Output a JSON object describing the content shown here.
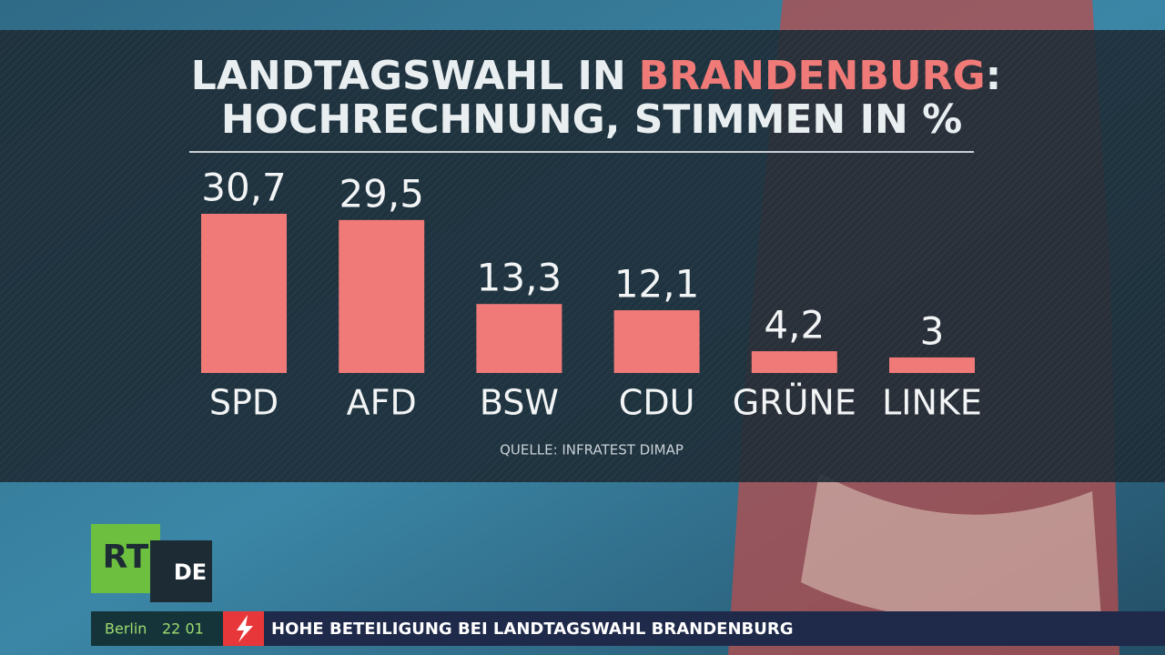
{
  "chart_data": {
    "type": "bar",
    "title_line1": [
      "LANDTAGSWAHL IN",
      "BRANDENBURG",
      ":"
    ],
    "title_line2": "HOCHRECHNUNG, STIMMEN IN %",
    "categories": [
      "SPD",
      "AFD",
      "BSW",
      "CDU",
      "GRÜNE",
      "LINKE"
    ],
    "values": [
      30.7,
      29.5,
      13.3,
      12.1,
      4.2,
      3
    ],
    "value_labels": [
      "30,7",
      "29,5",
      "13,3",
      "12,1",
      "4,2",
      "3"
    ],
    "color": "#f07a78",
    "source": "QUELLE: INFRATEST DIMAP"
  },
  "logo": {
    "main": "RT",
    "sub": "DE"
  },
  "ticker": {
    "city": "Berlin",
    "time": "22 01",
    "headline": "HOHE BETEILIGUNG BEI LANDTAGSWAHL BRANDENBURG"
  }
}
